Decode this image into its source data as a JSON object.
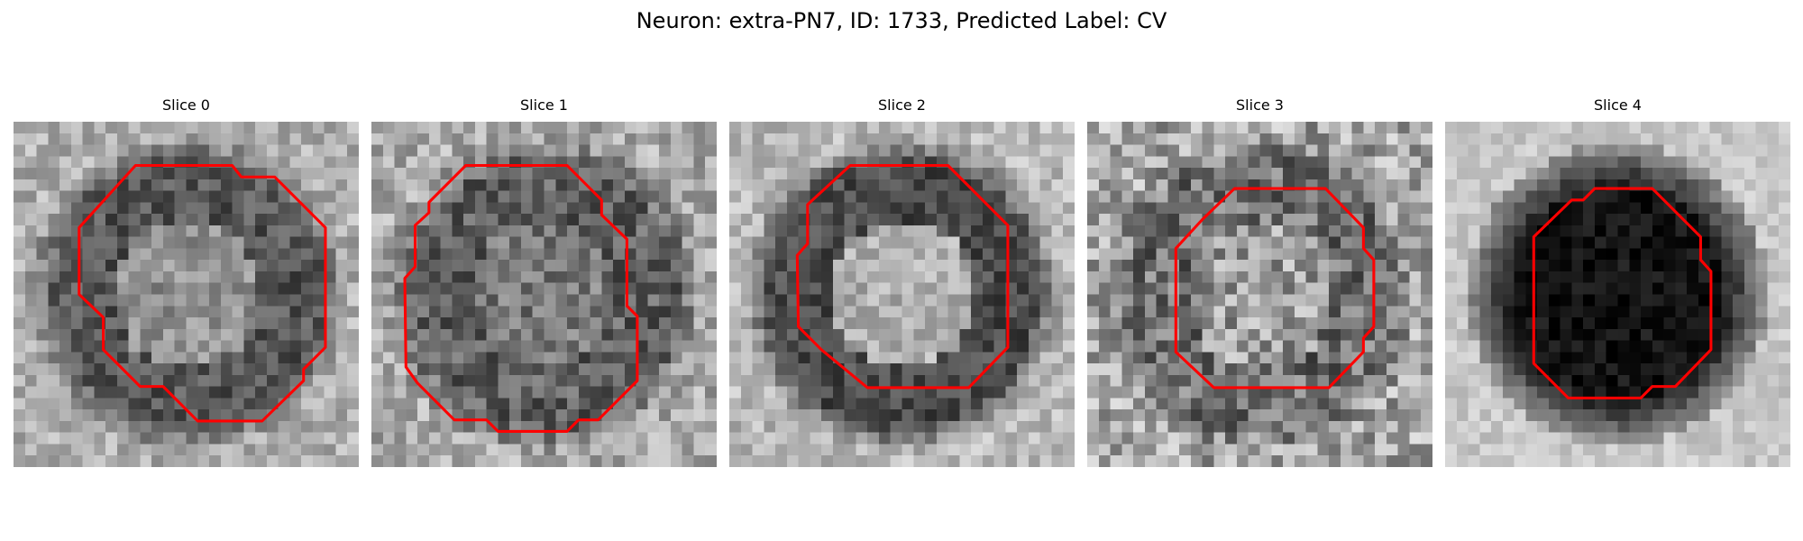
{
  "figure": {
    "title": "Neuron: extra-PN7, ID: 1733, Predicted Label: CV",
    "outline_color": "#ff0000",
    "colormap": "gray",
    "grid_size": 30,
    "slices": [
      {
        "title": "Slice 0",
        "mode": "ring",
        "ring_dark": 85,
        "center_val": 145,
        "bg_val": 175,
        "noise": 38,
        "seed": 11
      },
      {
        "title": "Slice 1",
        "mode": "ring",
        "ring_dark": 95,
        "center_val": 120,
        "bg_val": 170,
        "noise": 45,
        "seed": 23
      },
      {
        "title": "Slice 2",
        "mode": "ring",
        "ring_dark": 75,
        "center_val": 175,
        "bg_val": 185,
        "noise": 35,
        "seed": 37
      },
      {
        "title": "Slice 3",
        "mode": "ring",
        "ring_dark": 110,
        "center_val": 155,
        "bg_val": 165,
        "noise": 60,
        "seed": 41
      },
      {
        "title": "Slice 4",
        "mode": "blob",
        "ring_dark": 30,
        "center_val": 20,
        "bg_val": 200,
        "noise": 22,
        "seed": 53
      }
    ]
  }
}
